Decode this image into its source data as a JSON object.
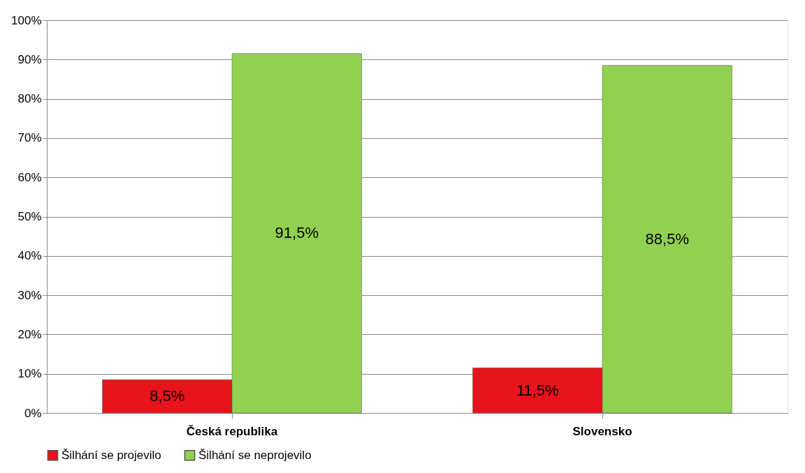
{
  "chart_data": {
    "type": "bar",
    "categories": [
      "Česká republika",
      "Slovensko"
    ],
    "series": [
      {
        "name": "Šilhání se projevilo",
        "color": "#e8141b",
        "values": [
          8.5,
          11.5
        ],
        "value_labels": [
          "8,5%",
          "11,5%"
        ]
      },
      {
        "name": "Šilhání se neprojevilo",
        "color": "#92d050",
        "values": [
          91.5,
          88.5
        ],
        "value_labels": [
          "91,5%",
          "88,5%"
        ]
      }
    ],
    "ylim": [
      0,
      100
    ],
    "yticks": [
      {
        "value": 0,
        "label": "0%"
      },
      {
        "value": 10,
        "label": "10%"
      },
      {
        "value": 20,
        "label": "20%"
      },
      {
        "value": 30,
        "label": "30%"
      },
      {
        "value": 40,
        "label": "40%"
      },
      {
        "value": 50,
        "label": "50%"
      },
      {
        "value": 60,
        "label": "60%"
      },
      {
        "value": 70,
        "label": "70%"
      },
      {
        "value": 80,
        "label": "80%"
      },
      {
        "value": 90,
        "label": "90%"
      },
      {
        "value": 100,
        "label": "100%"
      }
    ],
    "grid": "y",
    "legend": "bottom"
  }
}
